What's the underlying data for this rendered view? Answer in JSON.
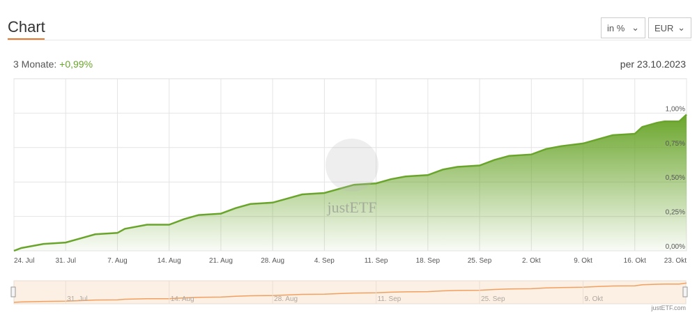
{
  "header": {
    "title": "Chart",
    "unit_select": "in %",
    "currency_select": "EUR"
  },
  "summary": {
    "period_label": "3 Monate:",
    "period_value": "+0,99%",
    "as_of": "per 23.10.2023"
  },
  "watermark": "justETF",
  "credit": "justETF.com",
  "colors": {
    "accent": "#e8772e",
    "line": "#6aa52b",
    "positive": "#6aa52b",
    "navigator_line": "#f0a060"
  },
  "chart_data": {
    "type": "area",
    "ylim": [
      0,
      1.25
    ],
    "yticks": [
      "0,00%",
      "0,25%",
      "0,50%",
      "0,75%",
      "1,00%"
    ],
    "ytick_values": [
      0,
      0.25,
      0.5,
      0.75,
      1.0
    ],
    "xticks": [
      "24. Jul",
      "31. Jul",
      "7. Aug",
      "14. Aug",
      "21. Aug",
      "28. Aug",
      "4. Sep",
      "11. Sep",
      "18. Sep",
      "25. Sep",
      "2. Okt",
      "9. Okt",
      "16. Okt",
      "23. Okt"
    ],
    "navigator_ticks": [
      "31. Jul",
      "14. Aug",
      "28. Aug",
      "11. Sep",
      "25. Sep",
      "9. Okt"
    ],
    "grid": true,
    "points": [
      [
        "2023-07-24",
        0
      ],
      [
        "2023-07-25",
        0.02
      ],
      [
        "2023-07-28",
        0.05
      ],
      [
        "2023-07-31",
        0.06
      ],
      [
        "2023-08-02",
        0.09
      ],
      [
        "2023-08-04",
        0.12
      ],
      [
        "2023-08-07",
        0.13
      ],
      [
        "2023-08-08",
        0.16
      ],
      [
        "2023-08-11",
        0.19
      ],
      [
        "2023-08-14",
        0.19
      ],
      [
        "2023-08-16",
        0.23
      ],
      [
        "2023-08-18",
        0.26
      ],
      [
        "2023-08-21",
        0.27
      ],
      [
        "2023-08-23",
        0.31
      ],
      [
        "2023-08-25",
        0.34
      ],
      [
        "2023-08-28",
        0.35
      ],
      [
        "2023-08-30",
        0.38
      ],
      [
        "2023-09-01",
        0.41
      ],
      [
        "2023-09-04",
        0.42
      ],
      [
        "2023-09-06",
        0.45
      ],
      [
        "2023-09-08",
        0.48
      ],
      [
        "2023-09-11",
        0.49
      ],
      [
        "2023-09-13",
        0.52
      ],
      [
        "2023-09-15",
        0.54
      ],
      [
        "2023-09-18",
        0.55
      ],
      [
        "2023-09-20",
        0.59
      ],
      [
        "2023-09-22",
        0.61
      ],
      [
        "2023-09-25",
        0.62
      ],
      [
        "2023-09-27",
        0.66
      ],
      [
        "2023-09-29",
        0.69
      ],
      [
        "2023-10-02",
        0.7
      ],
      [
        "2023-10-04",
        0.74
      ],
      [
        "2023-10-06",
        0.76
      ],
      [
        "2023-10-09",
        0.78
      ],
      [
        "2023-10-11",
        0.81
      ],
      [
        "2023-10-13",
        0.84
      ],
      [
        "2023-10-16",
        0.85
      ],
      [
        "2023-10-17",
        0.9
      ],
      [
        "2023-10-19",
        0.93
      ],
      [
        "2023-10-20",
        0.94
      ],
      [
        "2023-10-22",
        0.94
      ],
      [
        "2023-10-23",
        0.99
      ]
    ]
  }
}
